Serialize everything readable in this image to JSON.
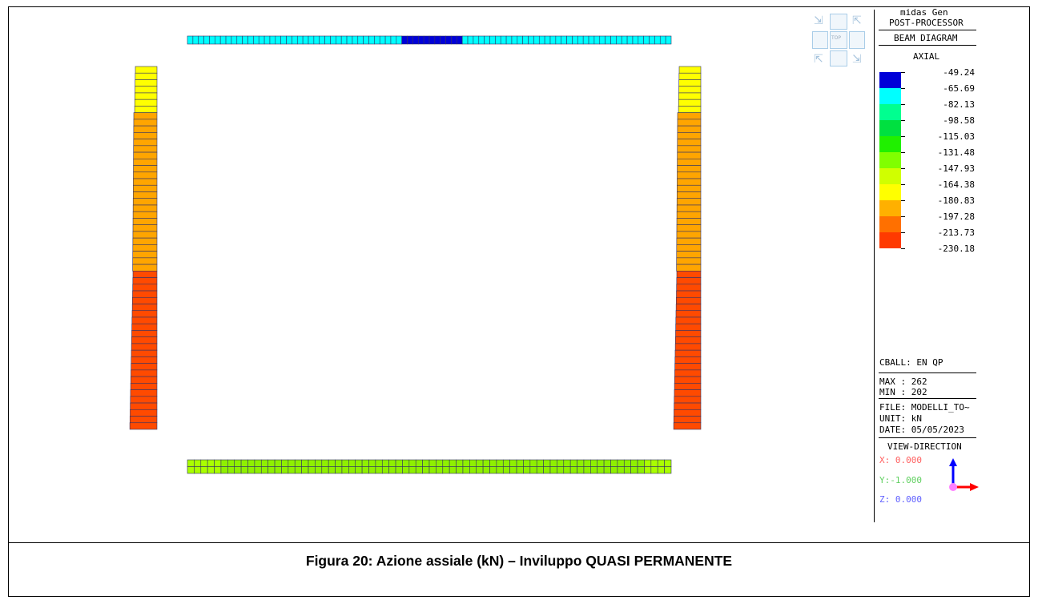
{
  "caption": "Figura 20: Azione assiale (kN) – Inviluppo QUASI PERMANENTE",
  "panel": {
    "app": "midas Gen",
    "module": "POST-PROCESSOR",
    "diagram": "BEAM DIAGRAM",
    "component": "AXIAL",
    "load_case": "CBALL: EN QP",
    "max": "MAX : 262",
    "min": "MIN : 202",
    "file": "FILE: MODELLI_TO~",
    "unit": "UNIT: kN",
    "date": "DATE: 05/05/2023",
    "view_title": "VIEW-DIRECTION",
    "view_x": "X: 0.000",
    "view_y": "Y:-1.000",
    "view_z": "Z: 0.000"
  },
  "viewcube": {
    "top_label": "TOP"
  },
  "legend": {
    "levels": [
      "-49.24",
      "-65.69",
      "-82.13",
      "-98.58",
      "-115.03",
      "-131.48",
      "-147.93",
      "-164.38",
      "-180.83",
      "-197.28",
      "-213.73",
      "-230.18"
    ],
    "colors": [
      "#0000d8",
      "#00ffff",
      "#00ff90",
      "#00e040",
      "#20f000",
      "#80ff00",
      "#d0ff00",
      "#ffff00",
      "#ffb000",
      "#ff7000",
      "#ff3a00"
    ]
  },
  "colors": {
    "top_beam": "#00ffff",
    "top_beam_mid": "#0000d8",
    "bottom_beam": "#8ff000",
    "bottom_beam_end": "#aaff00",
    "col_yellow": "#ffff00",
    "col_orange": "#ffa500",
    "col_red": "#ff4a00",
    "axis_x": "#ff0000",
    "axis_z": "#0000ff",
    "axis_origin": "#ff80ff",
    "view_x_color": "#ff6060",
    "view_y_color": "#60e060",
    "view_z_color": "#6060ff"
  }
}
